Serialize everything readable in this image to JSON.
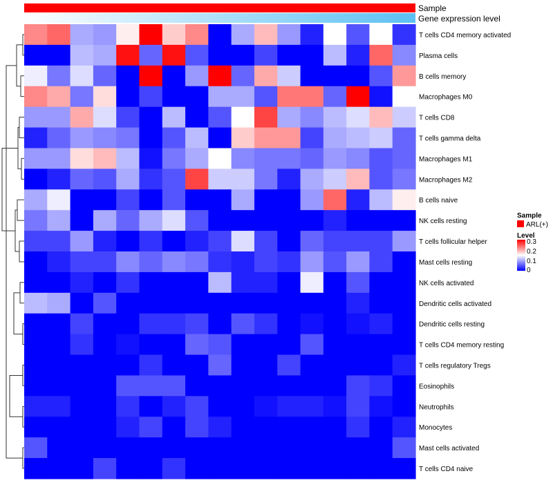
{
  "chart_data": {
    "type": "heatmap",
    "annotation_tracks": [
      {
        "label": "Sample",
        "color": "#ff0000"
      },
      {
        "label": "Gene expression level",
        "gradient_from": "#ffffff",
        "gradient_to": "#5bc0f2"
      }
    ],
    "rows": [
      "T cells CD4 memory activated",
      "Plasma cells",
      "B cells memory",
      "Macrophages M0",
      "T cells CD8",
      "T cells gamma delta",
      "Macrophages M1",
      "Macrophages M2",
      "B cells naive",
      "NK cells resting",
      "T cells follicular helper",
      "Mast cells resting",
      "NK cells activated",
      "Dendritic cells activated",
      "Dendritic cells resting",
      "T cells CD4 memory resting",
      "T cells regulatory  Tregs",
      "Eosinophils",
      "Neutrophils",
      "Monocytes",
      "Mast cells activated",
      "T cells CD4 naive"
    ],
    "values": [
      [
        0.22,
        0.24,
        0.1,
        0.09,
        0.16,
        0.3,
        0.18,
        0.22,
        0.0,
        0.1,
        0.19,
        0.09,
        0.02,
        0.15,
        0.05,
        0.15,
        0.03
      ],
      [
        0.0,
        0.0,
        0.11,
        0.1,
        0.29,
        0.06,
        0.29,
        0.05,
        0.0,
        0.0,
        0.04,
        0.0,
        0.0,
        0.11,
        0.02,
        0.24,
        0.08
      ],
      [
        0.14,
        0.07,
        0.13,
        0.06,
        0.0,
        0.3,
        0.0,
        0.09,
        0.3,
        0.06,
        0.2,
        0.12,
        0.0,
        0.0,
        0.0,
        0.05,
        0.21
      ],
      [
        0.22,
        0.2,
        0.07,
        0.17,
        0.0,
        0.04,
        0.0,
        0.0,
        0.1,
        0.1,
        0.05,
        0.23,
        0.23,
        0.06,
        0.3,
        0.01,
        0.15
      ],
      [
        0.09,
        0.09,
        0.2,
        0.13,
        0.04,
        0.0,
        0.11,
        0.0,
        0.05,
        0.15,
        0.26,
        0.1,
        0.08,
        0.11,
        0.13,
        0.19,
        0.12
      ],
      [
        0.02,
        0.06,
        0.09,
        0.08,
        0.07,
        0.0,
        0.05,
        0.11,
        0.0,
        0.18,
        0.21,
        0.21,
        0.04,
        0.1,
        0.11,
        0.12,
        0.06
      ],
      [
        0.09,
        0.09,
        0.17,
        0.19,
        0.11,
        0.01,
        0.07,
        0.1,
        0.15,
        0.08,
        0.07,
        0.07,
        0.06,
        0.09,
        0.08,
        0.05,
        0.06
      ],
      [
        0.0,
        0.02,
        0.06,
        0.05,
        0.1,
        0.03,
        0.05,
        0.26,
        0.12,
        0.12,
        0.07,
        0.02,
        0.1,
        0.12,
        0.19,
        0.05,
        0.07
      ],
      [
        0.1,
        0.14,
        0.0,
        0.0,
        0.04,
        0.0,
        0.05,
        0.0,
        0.0,
        0.1,
        0.0,
        0.0,
        0.09,
        0.24,
        0.02,
        0.11,
        0.16
      ],
      [
        0.07,
        0.1,
        0.0,
        0.1,
        0.06,
        0.1,
        0.13,
        0.05,
        0.0,
        0.0,
        0.0,
        0.0,
        0.0,
        0.02,
        0.0,
        0.0,
        0.0
      ],
      [
        0.04,
        0.04,
        0.09,
        0.02,
        0.0,
        0.03,
        0.0,
        0.02,
        0.04,
        0.13,
        0.04,
        0.0,
        0.06,
        0.04,
        0.04,
        0.04,
        0.09
      ],
      [
        0.0,
        0.02,
        0.04,
        0.04,
        0.08,
        0.06,
        0.08,
        0.07,
        0.03,
        0.02,
        0.04,
        0.03,
        0.09,
        0.05,
        0.09,
        0.04,
        0.0
      ],
      [
        0.0,
        0.0,
        0.02,
        0.0,
        0.03,
        0.0,
        0.0,
        0.0,
        0.11,
        0.02,
        0.02,
        0.0,
        0.14,
        0.0,
        0.05,
        0.0,
        0.0
      ],
      [
        0.11,
        0.1,
        0.0,
        0.05,
        0.0,
        0.0,
        0.0,
        0.0,
        0.0,
        0.0,
        0.0,
        0.0,
        0.0,
        0.0,
        0.02,
        0.0,
        0.0
      ],
      [
        0.0,
        0.0,
        0.04,
        0.0,
        0.0,
        0.03,
        0.03,
        0.04,
        0.0,
        0.05,
        0.03,
        0.0,
        0.01,
        0.0,
        0.01,
        0.02,
        0.0
      ],
      [
        0.0,
        0.0,
        0.03,
        0.0,
        0.01,
        0.0,
        0.0,
        0.06,
        0.05,
        0.0,
        0.0,
        0.0,
        0.05,
        0.0,
        0.0,
        0.0,
        0.0
      ],
      [
        0.0,
        0.0,
        0.0,
        0.0,
        0.0,
        0.03,
        0.0,
        0.0,
        0.06,
        0.0,
        0.0,
        0.04,
        0.0,
        0.0,
        0.0,
        0.0,
        0.02
      ],
      [
        0.0,
        0.0,
        0.0,
        0.0,
        0.05,
        0.05,
        0.05,
        0.0,
        0.0,
        0.0,
        0.0,
        0.0,
        0.0,
        0.0,
        0.04,
        0.03,
        0.0
      ],
      [
        0.02,
        0.02,
        0.0,
        0.0,
        0.03,
        0.0,
        0.02,
        0.04,
        0.0,
        0.0,
        0.01,
        0.02,
        0.02,
        0.01,
        0.04,
        0.01,
        0.0
      ],
      [
        0.0,
        0.0,
        0.0,
        0.0,
        0.02,
        0.04,
        0.0,
        0.04,
        0.02,
        0.0,
        0.0,
        0.0,
        0.0,
        0.0,
        0.03,
        0.0,
        0.02
      ],
      [
        0.05,
        0.0,
        0.0,
        0.0,
        0.0,
        0.0,
        0.0,
        0.0,
        0.0,
        0.0,
        0.0,
        0.0,
        0.0,
        0.0,
        0.0,
        0.0,
        0.05
      ],
      [
        0.0,
        0.0,
        0.0,
        0.04,
        0.0,
        0.0,
        0.03,
        0.0,
        0.0,
        0.0,
        0.0,
        0.0,
        0.0,
        0.0,
        0.0,
        0.0,
        0.0
      ]
    ],
    "color_scale": {
      "min": 0,
      "mid": 0.15,
      "max": 0.3,
      "low": "#0000ff",
      "midcolor": "#ffffff",
      "high": "#ff0000"
    },
    "legend": {
      "sample_title": "Sample",
      "sample_item": "ARL(+)",
      "sample_color": "#ff0000",
      "level_title": "Level",
      "level_ticks": [
        "0.3",
        "0.2",
        "0.1",
        "0"
      ]
    }
  }
}
